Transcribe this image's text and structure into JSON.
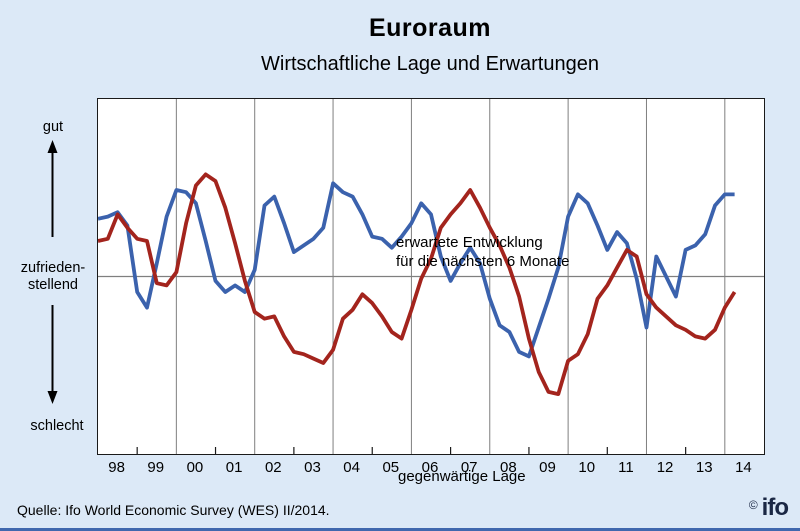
{
  "header": {
    "title": "Euroraum",
    "subtitle": "Wirtschaftliche Lage und Erwartungen"
  },
  "y_axis": {
    "top_label": "gut",
    "middle_label": "zufrieden-\nstellend",
    "bottom_label": "schlecht"
  },
  "annotations": {
    "expectations_label": "erwartete Entwicklung\nfür die nächsten  6 Monate",
    "current_label": "gegenwärtige Lage"
  },
  "footer": {
    "source": "Quelle: Ifo World Economic Survey (WES) II/2014.",
    "copyright_symbol": "©",
    "logo_text": "ifo"
  },
  "colors": {
    "background": "#DCE9F7",
    "expectations_line": "#3B62AD",
    "current_line": "#A3241D",
    "grid": "#7F7F7F",
    "frame": "#1A1A1A",
    "logo": "#1A2744",
    "bottom_rule": "#4068AE"
  },
  "chart_data": {
    "type": "line",
    "title": "Euroraum – Wirtschaftliche Lage und Erwartungen",
    "x_tick_labels": [
      "98",
      "99",
      "00",
      "01",
      "02",
      "03",
      "04",
      "05",
      "06",
      "07",
      "08",
      "09",
      "10",
      "11",
      "12",
      "13",
      "14"
    ],
    "points_per_year": 4,
    "x_note": "quarterly Ifo WES survey values, 1998 Q1 to 2014 Q2",
    "y_scale": {
      "min": 1,
      "middle": 5,
      "max": 9,
      "min_label": "schlecht",
      "middle_label": "zufriedenstellend",
      "max_label": "gut"
    },
    "grid": {
      "vertical_at_even_years": true,
      "horizontal_middle_line": true
    },
    "legend_position": "labels inside plot",
    "series": [
      {
        "name": "erwartete Entwicklung für die nächsten 6 Monate",
        "color": "#3B62AD",
        "values": [
          6.3,
          6.35,
          6.45,
          6.15,
          4.65,
          4.3,
          5.3,
          6.35,
          6.95,
          6.9,
          6.65,
          5.8,
          4.9,
          4.65,
          4.8,
          4.65,
          5.15,
          6.6,
          6.8,
          6.2,
          5.55,
          5.7,
          5.85,
          6.1,
          7.1,
          6.9,
          6.8,
          6.4,
          5.9,
          5.85,
          5.65,
          5.9,
          6.2,
          6.65,
          6.4,
          5.45,
          4.9,
          5.3,
          5.65,
          5.3,
          4.5,
          3.9,
          3.75,
          3.3,
          3.2,
          3.85,
          4.5,
          5.2,
          6.35,
          6.85,
          6.65,
          6.15,
          5.6,
          6.0,
          5.75,
          4.95,
          3.85,
          5.45,
          5.0,
          4.55,
          5.6,
          5.7,
          5.95,
          6.6,
          6.85,
          6.85
        ]
      },
      {
        "name": "gegenwärtige Lage",
        "color": "#A3241D",
        "values": [
          5.8,
          5.85,
          6.4,
          6.1,
          5.85,
          5.8,
          4.85,
          4.8,
          5.1,
          6.2,
          7.05,
          7.3,
          7.15,
          6.55,
          5.75,
          4.9,
          4.2,
          4.05,
          4.1,
          3.65,
          3.3,
          3.25,
          3.15,
          3.05,
          3.35,
          4.05,
          4.25,
          4.6,
          4.4,
          4.1,
          3.75,
          3.6,
          4.25,
          4.95,
          5.4,
          6.1,
          6.4,
          6.65,
          6.95,
          6.55,
          6.1,
          5.7,
          5.2,
          4.55,
          3.6,
          2.85,
          2.4,
          2.35,
          3.1,
          3.25,
          3.7,
          4.5,
          4.8,
          5.2,
          5.6,
          5.45,
          4.6,
          4.3,
          4.1,
          3.9,
          3.8,
          3.65,
          3.6,
          3.8,
          4.3,
          4.65
        ]
      }
    ]
  }
}
